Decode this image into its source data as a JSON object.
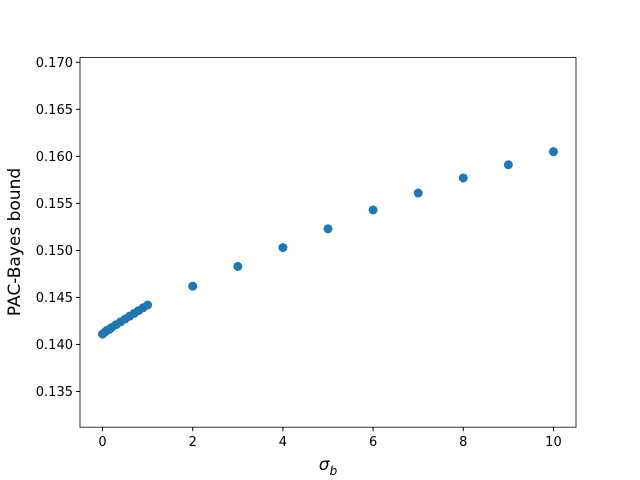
{
  "chart_data": {
    "type": "scatter",
    "xlabel": {
      "symbol": "σ",
      "subscript": "b"
    },
    "ylabel": "PAC-Bayes bound",
    "series": [
      {
        "color": "#1f77b4",
        "x": [
          0,
          0.05,
          0.1,
          0.15,
          0.2,
          0.3,
          0.4,
          0.5,
          0.6,
          0.7,
          0.8,
          0.9,
          1.0,
          2,
          3,
          4,
          5,
          6,
          7,
          8,
          9,
          10
        ],
        "values": [
          0.1411,
          0.1413,
          0.1415,
          0.1416,
          0.1418,
          0.1421,
          0.1424,
          0.1427,
          0.143,
          0.1433,
          0.1436,
          0.1439,
          0.1442,
          0.1462,
          0.1483,
          0.1503,
          0.1523,
          0.1543,
          0.1561,
          0.1577,
          0.1591,
          0.1605
        ]
      }
    ],
    "xlim": [
      -0.5,
      10.5
    ],
    "xticks": [
      0,
      2,
      4,
      6,
      8,
      10
    ],
    "ylim": [
      0.1312,
      0.1705
    ],
    "yticks": [
      0.135,
      {
        "value": 0.14,
        "label": "0.140"
      },
      0.145,
      {
        "value": 0.15,
        "label": "0.150"
      },
      0.155,
      {
        "value": 0.16,
        "label": "0.160"
      },
      0.165,
      {
        "value": 0.17,
        "label": "0.170"
      }
    ],
    "grid": false
  }
}
